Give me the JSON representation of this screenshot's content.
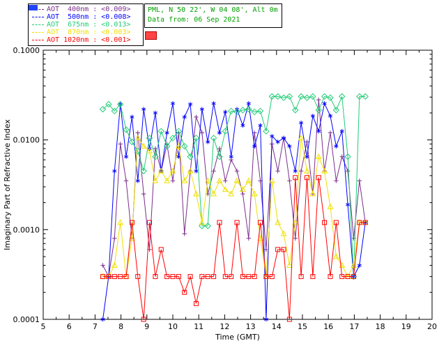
{
  "header": {
    "site_line": "PML, N 50 22', W 04 08', Alt 0m",
    "date_line": "Data from: 06 Sep 2021",
    "text_color": "#00a000"
  },
  "decorations": {
    "legend_chip_color": "#2244ff",
    "info_chip_color": "#ff4444"
  },
  "legend": {
    "items": [
      {
        "label": "AOT  400nm : <0.009>",
        "color": "#7b2d8b"
      },
      {
        "label": "AOT  500nm : <0.008>",
        "color": "#0000ff"
      },
      {
        "label": "AOT  675nm : <0.013>",
        "color": "#22cc77"
      },
      {
        "label": "AOT  870nm : <0.003>",
        "color": "#f0e000"
      },
      {
        "label": "AOT 1020nm : <0.001>",
        "color": "#ff0000"
      }
    ]
  },
  "chart_data": {
    "type": "line",
    "title": "",
    "xlabel": "Time (GMT)",
    "ylabel": "Imaginary Part of Refractive Index",
    "xlim": [
      5,
      20
    ],
    "ylim": [
      0.0001,
      0.1
    ],
    "yscale": "log",
    "grid": false,
    "legend_position": "top-left-outside",
    "x_ticks": [
      5,
      6,
      7,
      8,
      9,
      10,
      11,
      12,
      13,
      14,
      15,
      16,
      17,
      18,
      19,
      20
    ],
    "y_ticks": [
      {
        "v": 0.0001,
        "label": "0.0001"
      },
      {
        "v": 0.001,
        "label": "0.0010"
      },
      {
        "v": 0.01,
        "label": "0.0100"
      },
      {
        "v": 0.1,
        "label": "0.1000"
      }
    ],
    "x": [
      7.3,
      7.525,
      7.75,
      7.975,
      8.2,
      8.425,
      8.65,
      8.875,
      9.1,
      9.325,
      9.55,
      9.775,
      10.0,
      10.225,
      10.45,
      10.675,
      10.9,
      11.125,
      11.35,
      11.575,
      11.8,
      12.025,
      12.25,
      12.475,
      12.7,
      12.925,
      13.15,
      13.375,
      13.6,
      13.825,
      14.05,
      14.275,
      14.5,
      14.725,
      14.95,
      15.175,
      15.4,
      15.625,
      15.85,
      16.075,
      16.3,
      16.525,
      16.75,
      16.975,
      17.2,
      17.425
    ],
    "series": [
      {
        "name": "AOT 400nm",
        "mean_label": "<0.009>",
        "color": "#7b2d8b",
        "marker": "plus",
        "values": [
          0.0004,
          0.0003,
          0.0008,
          0.009,
          0.0035,
          0.0008,
          0.012,
          0.0025,
          0.0006,
          0.008,
          0.0045,
          0.009,
          0.0035,
          0.012,
          0.0009,
          0.0045,
          0.018,
          0.012,
          0.0025,
          0.0045,
          0.008,
          0.0035,
          0.006,
          0.0045,
          0.0025,
          0.0008,
          0.012,
          0.0035,
          0.0006,
          0.009,
          0.0045,
          0.0105,
          0.0035,
          0.0008,
          0.0045,
          0.0095,
          0.0025,
          0.028,
          0.0045,
          0.012,
          0.0035,
          0.0065,
          0.0045,
          0.0008,
          0.0035,
          0.0012
        ]
      },
      {
        "name": "AOT 500nm",
        "mean_label": "<0.008>",
        "color": "#0000ff",
        "marker": "asterisk",
        "values": [
          0.0001,
          0.0003,
          0.0045,
          0.025,
          0.0065,
          0.018,
          0.0035,
          0.022,
          0.008,
          0.02,
          0.0045,
          0.012,
          0.0255,
          0.0065,
          0.018,
          0.025,
          0.0045,
          0.022,
          0.0095,
          0.0255,
          0.012,
          0.0205,
          0.0065,
          0.022,
          0.0145,
          0.0255,
          0.0085,
          0.0145,
          0.0001,
          0.011,
          0.0095,
          0.0105,
          0.0085,
          0.0045,
          0.0155,
          0.0065,
          0.0185,
          0.0125,
          0.0255,
          0.0185,
          0.0085,
          0.0125,
          0.0019,
          0.0003,
          0.0004,
          0.0012
        ]
      },
      {
        "name": "AOT 675nm",
        "mean_label": "<0.013>",
        "color": "#22cc77",
        "marker": "diamond",
        "values": [
          0.022,
          0.025,
          0.021,
          0.025,
          0.013,
          0.0095,
          0.0075,
          0.0045,
          0.0105,
          0.0065,
          0.0125,
          0.0085,
          0.0105,
          0.0125,
          0.0085,
          0.0065,
          0.0105,
          0.0011,
          0.0011,
          0.0105,
          0.0065,
          0.0125,
          0.021,
          0.0205,
          0.0215,
          0.022,
          0.0205,
          0.021,
          0.0125,
          0.0305,
          0.0305,
          0.0295,
          0.0305,
          0.0215,
          0.0305,
          0.0295,
          0.0305,
          0.0215,
          0.0305,
          0.0295,
          0.0215,
          0.0305,
          0.0065,
          0.0003,
          0.0305,
          0.0305
        ]
      },
      {
        "name": "AOT 870nm",
        "mean_label": "<0.003>",
        "color": "#f0e000",
        "marker": "triangle",
        "values": [
          0.0003,
          0.0003,
          0.0004,
          0.0012,
          0.0003,
          0.0008,
          0.0105,
          0.0085,
          0.0075,
          0.0035,
          0.0045,
          0.0035,
          0.0045,
          0.0085,
          0.0035,
          0.0045,
          0.0025,
          0.0012,
          0.0035,
          0.0025,
          0.0035,
          0.0028,
          0.0025,
          0.0035,
          0.0028,
          0.0035,
          0.0025,
          0.0008,
          0.0003,
          0.0035,
          0.0012,
          0.0009,
          0.0004,
          0.0012,
          0.0105,
          0.0045,
          0.0025,
          0.0065,
          0.0045,
          0.0018,
          0.0005,
          0.0004,
          0.0003,
          0.0004,
          0.0012,
          0.0012
        ]
      },
      {
        "name": "AOT 1020nm",
        "mean_label": "<0.001>",
        "color": "#ff0000",
        "marker": "square",
        "values": [
          0.0003,
          0.0003,
          0.0003,
          0.0003,
          0.0003,
          0.0012,
          0.0003,
          0.0001,
          0.0012,
          0.0003,
          0.0006,
          0.0003,
          0.0003,
          0.0003,
          0.0002,
          0.0003,
          0.00015,
          0.0003,
          0.0003,
          0.0003,
          0.0012,
          0.0003,
          0.0003,
          0.0012,
          0.0003,
          0.0003,
          0.0003,
          0.0012,
          0.0003,
          0.0003,
          0.0006,
          0.0006,
          0.0001,
          0.0038,
          0.0003,
          0.0038,
          0.0003,
          0.0038,
          0.0012,
          0.0003,
          0.0012,
          0.0003,
          0.0003,
          0.0003,
          0.0012,
          0.0012
        ]
      }
    ]
  }
}
